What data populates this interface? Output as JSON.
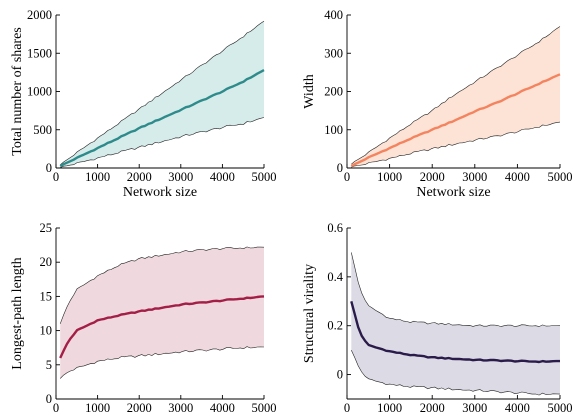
{
  "chart_data": [
    {
      "type": "line",
      "xlabel": "Network size",
      "ylabel": "Total number of shares",
      "xlim": [
        0,
        5000
      ],
      "ylim": [
        0,
        2000
      ],
      "xticks": [
        0,
        1000,
        2000,
        3000,
        4000,
        5000
      ],
      "yticks": [
        0,
        500,
        1000,
        1500,
        2000
      ],
      "color": "#2e8b8b",
      "band_color": "#d6ecea",
      "x": [
        100,
        500,
        1000,
        1500,
        2000,
        2500,
        3000,
        3500,
        4000,
        4500,
        5000
      ],
      "series": [
        {
          "role": "mean",
          "values": [
            25,
            130,
            260,
            390,
            520,
            640,
            760,
            880,
            1000,
            1130,
            1280
          ]
        },
        {
          "role": "lower",
          "values": [
            5,
            60,
            130,
            200,
            270,
            340,
            410,
            470,
            530,
            580,
            660
          ]
        },
        {
          "role": "upper",
          "values": [
            40,
            200,
            390,
            580,
            770,
            960,
            1150,
            1340,
            1530,
            1720,
            1920
          ]
        }
      ]
    },
    {
      "type": "line",
      "xlabel": "Network size",
      "ylabel": "Width",
      "xlim": [
        0,
        5000
      ],
      "ylim": [
        0,
        400
      ],
      "xticks": [
        0,
        1000,
        2000,
        3000,
        4000,
        5000
      ],
      "yticks": [
        0,
        100,
        200,
        300,
        400
      ],
      "color": "#f4845f",
      "band_color": "#fde3d6",
      "x": [
        100,
        500,
        1000,
        1500,
        2000,
        2500,
        3000,
        3500,
        4000,
        4500,
        5000
      ],
      "series": [
        {
          "role": "mean",
          "values": [
            5,
            27,
            52,
            77,
            100,
            123,
            148,
            170,
            195,
            220,
            245
          ]
        },
        {
          "role": "lower",
          "values": [
            2,
            12,
            25,
            38,
            50,
            62,
            73,
            83,
            95,
            108,
            120
          ]
        },
        {
          "role": "upper",
          "values": [
            10,
            40,
            78,
            115,
            150,
            190,
            225,
            260,
            295,
            330,
            370
          ]
        }
      ]
    },
    {
      "type": "line",
      "xlabel": "Network size",
      "ylabel": "Longest-path length",
      "xlim": [
        0,
        5000
      ],
      "ylim": [
        0,
        25
      ],
      "xticks": [
        0,
        1000,
        2000,
        3000,
        4000,
        5000
      ],
      "yticks": [
        0,
        5,
        10,
        15,
        20,
        25
      ],
      "color": "#a31f48",
      "band_color": "#f0d9de",
      "x": [
        100,
        300,
        500,
        1000,
        1500,
        2000,
        2500,
        3000,
        3500,
        4000,
        4500,
        5000
      ],
      "series": [
        {
          "role": "mean",
          "values": [
            6,
            8.5,
            10,
            11.5,
            12.2,
            12.8,
            13.3,
            13.8,
            14.1,
            14.4,
            14.7,
            15
          ]
        },
        {
          "role": "lower",
          "values": [
            3,
            4,
            4.5,
            5.5,
            6,
            6.3,
            6.6,
            6.9,
            7.1,
            7.3,
            7.5,
            7.6
          ]
        },
        {
          "role": "upper",
          "values": [
            11,
            14,
            16,
            18,
            19.5,
            20.5,
            21,
            21.5,
            21.8,
            22,
            22.1,
            22.2
          ]
        }
      ]
    },
    {
      "type": "line",
      "xlabel": "Network size",
      "ylabel": "Structural virality",
      "xlim": [
        0,
        5000
      ],
      "ylim": [
        -0.1,
        0.6
      ],
      "xticks": [
        0,
        1000,
        2000,
        3000,
        4000,
        5000
      ],
      "yticks": [
        0,
        0.2,
        0.4,
        0.6
      ],
      "color": "#2a1b4a",
      "band_color": "#dcdbe5",
      "x": [
        100,
        300,
        500,
        1000,
        1500,
        2000,
        2500,
        3000,
        3500,
        4000,
        4500,
        5000
      ],
      "series": [
        {
          "role": "mean",
          "values": [
            0.3,
            0.17,
            0.12,
            0.095,
            0.08,
            0.07,
            0.065,
            0.06,
            0.058,
            0.055,
            0.053,
            0.055
          ]
        },
        {
          "role": "lower",
          "values": [
            0.1,
            0.02,
            -0.02,
            -0.04,
            -0.05,
            -0.055,
            -0.06,
            -0.065,
            -0.07,
            -0.075,
            -0.08,
            -0.08
          ]
        },
        {
          "role": "upper",
          "values": [
            0.5,
            0.35,
            0.28,
            0.23,
            0.215,
            0.21,
            0.205,
            0.2,
            0.2,
            0.2,
            0.2,
            0.2
          ]
        }
      ]
    }
  ]
}
